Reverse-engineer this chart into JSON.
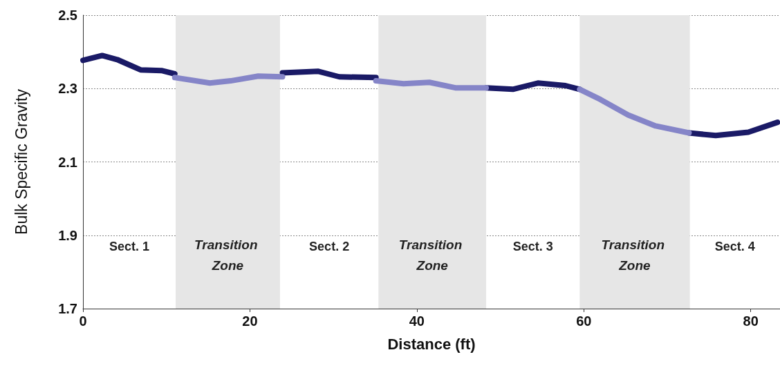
{
  "chart_data": {
    "type": "line",
    "xlabel": "Distance (ft)",
    "ylabel": "Bulk Specific Gravity",
    "xlim": [
      0,
      83.5
    ],
    "xticks": [
      0,
      20,
      40,
      60,
      80
    ],
    "ylim": [
      1.7,
      2.5
    ],
    "yticks": [
      1.7,
      1.9,
      2.1,
      2.3,
      2.5
    ],
    "grid": "y",
    "marker": "none",
    "line_style": "solid",
    "series": [
      {
        "color": "#1a1a66",
        "x": [
          0,
          2.3,
          4.1,
          5.6,
          6.9,
          9.4,
          11.0,
          null,
          23.9,
          28.2,
          30.7,
          35.1,
          null,
          48.3,
          51.5,
          54.5,
          57.8,
          59.5,
          null,
          72.6,
          75.8,
          79.7,
          83.2
        ],
        "values": [
          2.377,
          2.39,
          2.379,
          2.364,
          2.351,
          2.349,
          2.34,
          null,
          2.343,
          2.347,
          2.332,
          2.33,
          null,
          2.302,
          2.298,
          2.315,
          2.308,
          2.298,
          null,
          2.179,
          2.172,
          2.181,
          2.208
        ]
      },
      {
        "color": "#8585c8",
        "x": [
          11.0,
          15.2,
          17.7,
          21.0,
          23.9,
          null,
          35.1,
          38.4,
          41.5,
          44.6,
          48.3,
          null,
          59.5,
          62.0,
          65.3,
          68.6,
          72.6
        ],
        "values": [
          2.33,
          2.315,
          2.321,
          2.334,
          2.332,
          null,
          2.321,
          2.313,
          2.317,
          2.302,
          2.302,
          null,
          2.298,
          2.27,
          2.228,
          2.198,
          2.179
        ]
      }
    ],
    "bands": [
      {
        "axis": "x",
        "from": 11.1,
        "to": 23.6,
        "label": "Transition Zone",
        "color": "#e6e6e6"
      },
      {
        "axis": "x",
        "from": 35.4,
        "to": 48.3,
        "label": "Transition Zone",
        "color": "#e6e6e6"
      },
      {
        "axis": "x",
        "from": 59.5,
        "to": 72.7,
        "label": "Transition Zone",
        "color": "#e6e6e6"
      }
    ],
    "annotations": [
      "Sect. 1",
      "Sect. 2",
      "Sect. 3",
      "Sect. 4"
    ]
  }
}
